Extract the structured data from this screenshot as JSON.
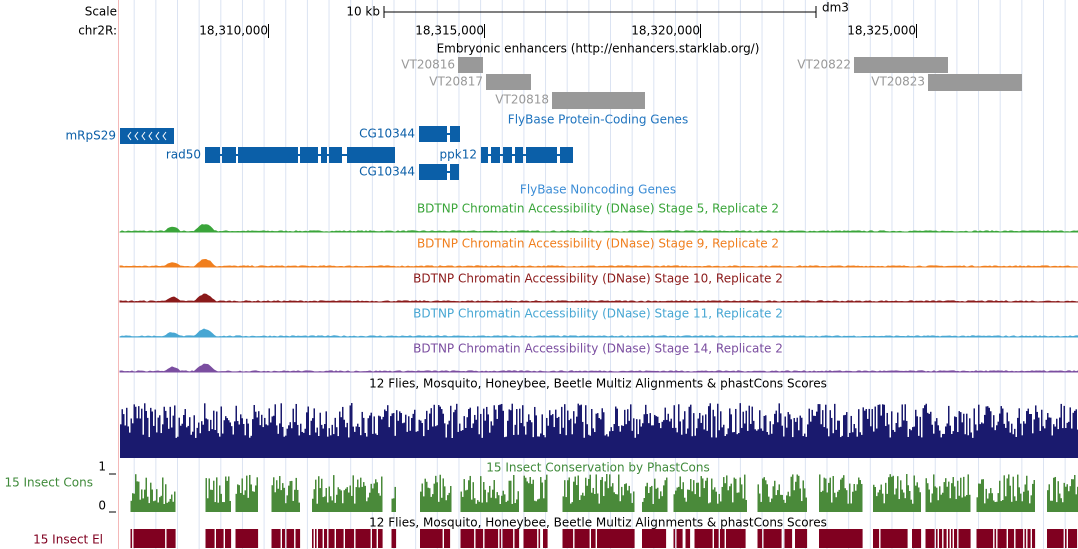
{
  "scale": {
    "label": "Scale",
    "length": "10 kb",
    "assembly": "dm3"
  },
  "chrom": {
    "name": "chr2R:",
    "positions": [
      "18,310,000",
      "18,315,000",
      "18,320,000",
      "18,325,000"
    ]
  },
  "enhancers": {
    "title": "Embryonic enhancers (http://enhancers.starklab.org/)",
    "items": [
      "VT20816",
      "VT20817",
      "VT20818",
      "VT20822",
      "VT20823"
    ]
  },
  "protein_genes": {
    "title": "FlyBase Protein-Coding Genes",
    "items": [
      "mRpS29",
      "CG10344",
      "rad50",
      "ppk12",
      "CG10344"
    ]
  },
  "noncoding_genes": {
    "title": "FlyBase Noncoding Genes"
  },
  "dnase": [
    "BDTNP Chromatin Accessibility (DNase) Stage 5, Replicate 2",
    "BDTNP Chromatin Accessibility (DNase) Stage 9, Replicate 2",
    "BDTNP Chromatin Accessibility (DNase) Stage 10, Replicate 2",
    "BDTNP Chromatin Accessibility (DNase) Stage 11, Replicate 2",
    "BDTNP Chromatin Accessibility (DNase) Stage 14, Replicate 2"
  ],
  "multiz": {
    "title": "12 Flies, Mosquito, Honeybee, Beetle Multiz Alignments & phastCons Scores"
  },
  "phastcons": {
    "label": "15 Insect Cons",
    "title": "15 Insect Conservation by PhastCons",
    "max": "1",
    "min": "0"
  },
  "elements": {
    "title": "12 Flies, Mosquito, Honeybee, Beetle Multiz Alignments & phastCons Scores",
    "label": "15 Insect El"
  }
}
